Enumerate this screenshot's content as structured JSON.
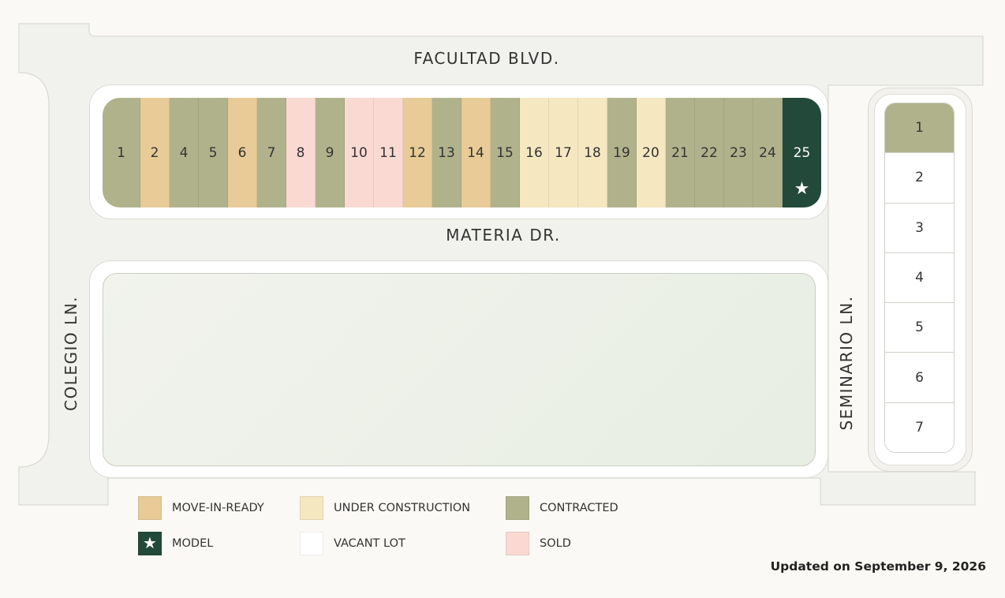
{
  "streets": {
    "top": "FACULTAD BLVD.",
    "middle": "MATERIA DR.",
    "left": "COLEGIO LN.",
    "right": "SEMINARIO LN."
  },
  "status_colors": {
    "move_in_ready": "#e8cb97",
    "under_construction": "#f5e7c0",
    "contracted": "#b0b28c",
    "model": "#23493a",
    "vacant": "#ffffff",
    "sold": "#f9d9d2"
  },
  "top_lots": [
    {
      "number": "1",
      "status": "contracted"
    },
    {
      "number": "2",
      "status": "move_in_ready"
    },
    {
      "number": "4",
      "status": "contracted"
    },
    {
      "number": "5",
      "status": "contracted"
    },
    {
      "number": "6",
      "status": "move_in_ready"
    },
    {
      "number": "7",
      "status": "contracted"
    },
    {
      "number": "8",
      "status": "sold"
    },
    {
      "number": "9",
      "status": "contracted"
    },
    {
      "number": "10",
      "status": "sold"
    },
    {
      "number": "11",
      "status": "sold"
    },
    {
      "number": "12",
      "status": "move_in_ready"
    },
    {
      "number": "13",
      "status": "contracted"
    },
    {
      "number": "14",
      "status": "move_in_ready"
    },
    {
      "number": "15",
      "status": "contracted"
    },
    {
      "number": "16",
      "status": "under_construction"
    },
    {
      "number": "17",
      "status": "under_construction"
    },
    {
      "number": "18",
      "status": "under_construction"
    },
    {
      "number": "19",
      "status": "contracted"
    },
    {
      "number": "20",
      "status": "under_construction"
    },
    {
      "number": "21",
      "status": "contracted"
    },
    {
      "number": "22",
      "status": "contracted"
    },
    {
      "number": "23",
      "status": "contracted"
    },
    {
      "number": "24",
      "status": "contracted"
    },
    {
      "number": "25",
      "status": "model",
      "icon": "star-icon"
    }
  ],
  "right_lots": [
    {
      "number": "1",
      "status": "contracted"
    },
    {
      "number": "2",
      "status": "vacant"
    },
    {
      "number": "3",
      "status": "vacant"
    },
    {
      "number": "4",
      "status": "vacant"
    },
    {
      "number": "5",
      "status": "vacant"
    },
    {
      "number": "6",
      "status": "vacant"
    },
    {
      "number": "7",
      "status": "vacant"
    }
  ],
  "legend": [
    {
      "label": "MOVE-IN-READY",
      "status": "move_in_ready"
    },
    {
      "label": "UNDER CONSTRUCTION",
      "status": "under_construction"
    },
    {
      "label": "CONTRACTED",
      "status": "contracted"
    },
    {
      "label": "MODEL",
      "status": "model",
      "icon": "star-icon"
    },
    {
      "label": "VACANT LOT",
      "status": "vacant"
    },
    {
      "label": "SOLD",
      "status": "sold"
    }
  ],
  "updated": "Updated on September 9, 2026"
}
